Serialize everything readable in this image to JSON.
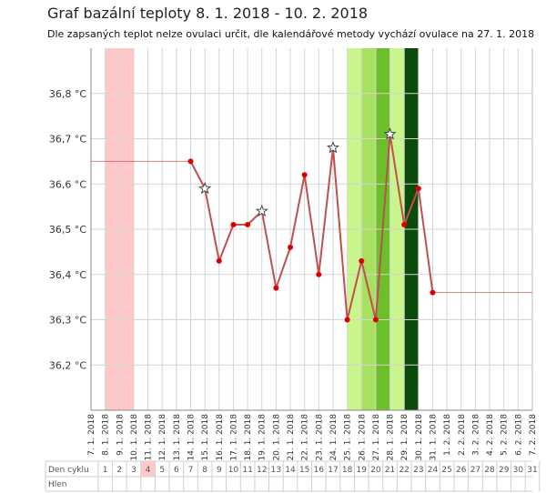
{
  "title": "Graf bazální teploty 8. 1. 2018 - 10. 2. 2018",
  "subtitle": "Dle zapsaných teplot nelze ovulaci určit, dle kalendářové metody vychází ovulace na 27. 1. 2018",
  "chart_data": {
    "type": "line",
    "ylim": [
      36.1,
      36.9
    ],
    "y_ticks": [
      "36,2 °C",
      "36,3 °C",
      "36,4 °C",
      "36,5 °C",
      "36,6 °C",
      "36,7 °C",
      "36,8 °C"
    ],
    "y_tick_values": [
      36.2,
      36.3,
      36.4,
      36.5,
      36.6,
      36.7,
      36.8
    ],
    "dates": [
      "7. 1. 2018",
      "8. 1. 2018",
      "9. 1. 2018",
      "10. 1. 2018",
      "11. 1. 2018",
      "12. 1. 2018",
      "13. 1. 2018",
      "14. 1. 2018",
      "15. 1. 2018",
      "16. 1. 2018",
      "17. 1. 2018",
      "18. 1. 2018",
      "19. 1. 2018",
      "20. 1. 2018",
      "21. 1. 2018",
      "22. 1. 2018",
      "23. 1. 2018",
      "24. 1. 2018",
      "25. 1. 2018",
      "26. 1. 2018",
      "27. 1. 2018",
      "28. 1. 2018",
      "29. 1. 2018",
      "30. 1. 2018",
      "31. 1. 2018",
      "1. 2. 2018",
      "2. 2. 2018",
      "3. 2. 2018",
      "4. 2. 2018",
      "5. 2. 2018",
      "6. 2. 2018",
      "7. 2. 2018"
    ],
    "series": [
      {
        "values": [
          {
            "date": "14. 1. 2018",
            "value": 36.65
          },
          {
            "date": "15. 1. 2018",
            "value": 36.59,
            "marker": "star"
          },
          {
            "date": "16. 1. 2018",
            "value": 36.43
          },
          {
            "date": "17. 1. 2018",
            "value": 36.51
          },
          {
            "date": "18. 1. 2018",
            "value": 36.51
          },
          {
            "date": "19. 1. 2018",
            "value": 36.54,
            "marker": "star"
          },
          {
            "date": "20. 1. 2018",
            "value": 36.37
          },
          {
            "date": "21. 1. 2018",
            "value": 36.46
          },
          {
            "date": "22. 1. 2018",
            "value": 36.62
          },
          {
            "date": "23. 1. 2018",
            "value": 36.4
          },
          {
            "date": "24. 1. 2018",
            "value": 36.68,
            "marker": "star"
          },
          {
            "date": "25. 1. 2018",
            "value": 36.3
          },
          {
            "date": "26. 1. 2018",
            "value": 36.43
          },
          {
            "date": "27. 1. 2018",
            "value": 36.3
          },
          {
            "date": "28. 1. 2018",
            "value": 36.71,
            "marker": "star"
          },
          {
            "date": "29. 1. 2018",
            "value": 36.51
          },
          {
            "date": "30. 1. 2018",
            "value": 36.59
          },
          {
            "date": "31. 1. 2018",
            "value": 36.36
          }
        ]
      }
    ],
    "lead_in_level": {
      "from": "7. 1. 2018",
      "to": "14. 1. 2018",
      "value": 36.65
    },
    "trail_level": {
      "from": "31. 1. 2018",
      "to": "7. 2. 2018",
      "value": 36.36
    },
    "bands": [
      {
        "from": "8. 1. 2018",
        "to": "10. 1. 2018",
        "color": "#ffc8c8"
      },
      {
        "from": "25. 1. 2018",
        "to": "29. 1. 2018",
        "color": "#c8f58c"
      },
      {
        "from": "26. 1. 2018",
        "to": "27. 1. 2018",
        "color": "#a8e060"
      },
      {
        "from": "27. 1. 2018",
        "to": "28. 1. 2018",
        "color": "#6cbf2a"
      },
      {
        "from": "29. 1. 2018",
        "to": "30. 1. 2018",
        "color": "#0a4a0a"
      }
    ],
    "line_color": "#c0504d",
    "point_color": "#dd0000",
    "grid": true
  },
  "table": {
    "row1_label": "Den cyklu",
    "row2_label": "Hlen",
    "cycle_days": [
      "1",
      "2",
      "3",
      "4",
      "5",
      "6",
      "7",
      "8",
      "9",
      "10",
      "11",
      "12",
      "13",
      "14",
      "15",
      "16",
      "17",
      "18",
      "19",
      "20",
      "21",
      "22",
      "23",
      "24",
      "25",
      "26",
      "27",
      "28",
      "29",
      "30",
      "31"
    ],
    "highlight_day": "4",
    "highlight_color": "#ffc8c8"
  }
}
